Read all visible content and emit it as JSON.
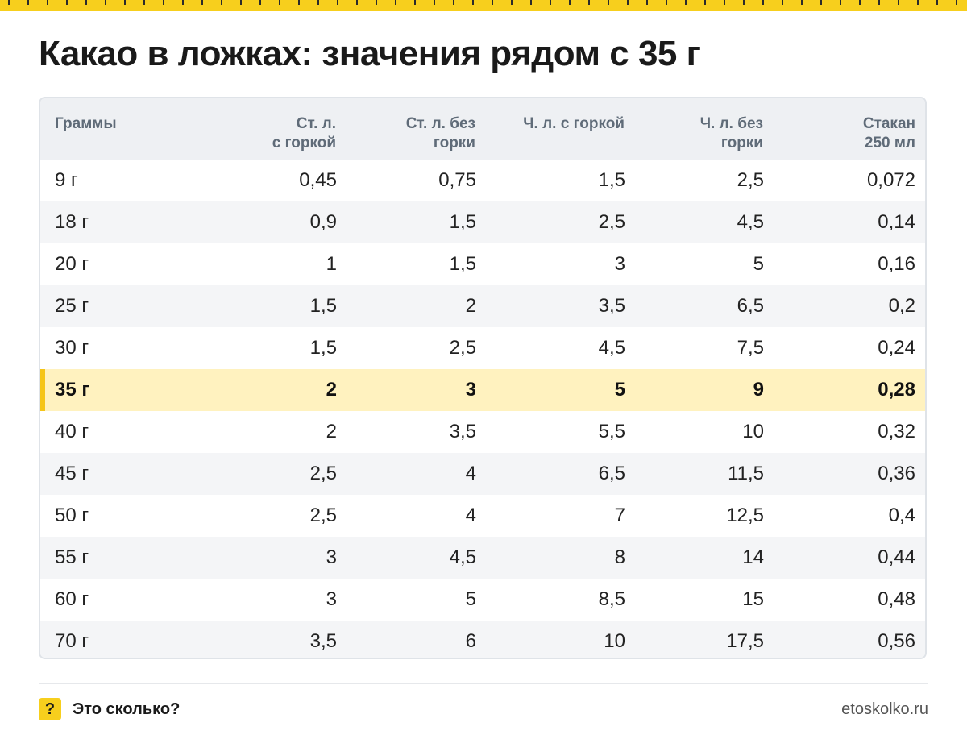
{
  "page": {
    "title": "Какао в ложках: значения рядом с 35 г",
    "accent_color": "#f7cf1d",
    "highlight_color": "#fff2bf"
  },
  "table": {
    "headers": [
      [
        "Граммы"
      ],
      [
        "Ст. л.",
        "с горкой"
      ],
      [
        "Ст. л. без",
        "горки"
      ],
      [
        "Ч. л. с горкой"
      ],
      [
        "Ч. л. без",
        "горки"
      ],
      [
        "Стакан",
        "250 мл"
      ]
    ],
    "highlighted_row": "35 г",
    "rows": [
      [
        "9 г",
        "0,45",
        "0,75",
        "1,5",
        "2,5",
        "0,072"
      ],
      [
        "18 г",
        "0,9",
        "1,5",
        "2,5",
        "4,5",
        "0,14"
      ],
      [
        "20 г",
        "1",
        "1,5",
        "3",
        "5",
        "0,16"
      ],
      [
        "25 г",
        "1,5",
        "2",
        "3,5",
        "6,5",
        "0,2"
      ],
      [
        "30 г",
        "1,5",
        "2,5",
        "4,5",
        "7,5",
        "0,24"
      ],
      [
        "35 г",
        "2",
        "3",
        "5",
        "9",
        "0,28"
      ],
      [
        "40 г",
        "2",
        "3,5",
        "5,5",
        "10",
        "0,32"
      ],
      [
        "45 г",
        "2,5",
        "4",
        "6,5",
        "11,5",
        "0,36"
      ],
      [
        "50 г",
        "2,5",
        "4",
        "7",
        "12,5",
        "0,4"
      ],
      [
        "55 г",
        "3",
        "4,5",
        "8",
        "14",
        "0,44"
      ],
      [
        "60 г",
        "3",
        "5",
        "8,5",
        "15",
        "0,48"
      ],
      [
        "70 г",
        "3,5",
        "6",
        "10",
        "17,5",
        "0,56"
      ]
    ]
  },
  "footer": {
    "badge": "?",
    "brand": "Это сколько?",
    "site": "etoskolko.ru"
  }
}
